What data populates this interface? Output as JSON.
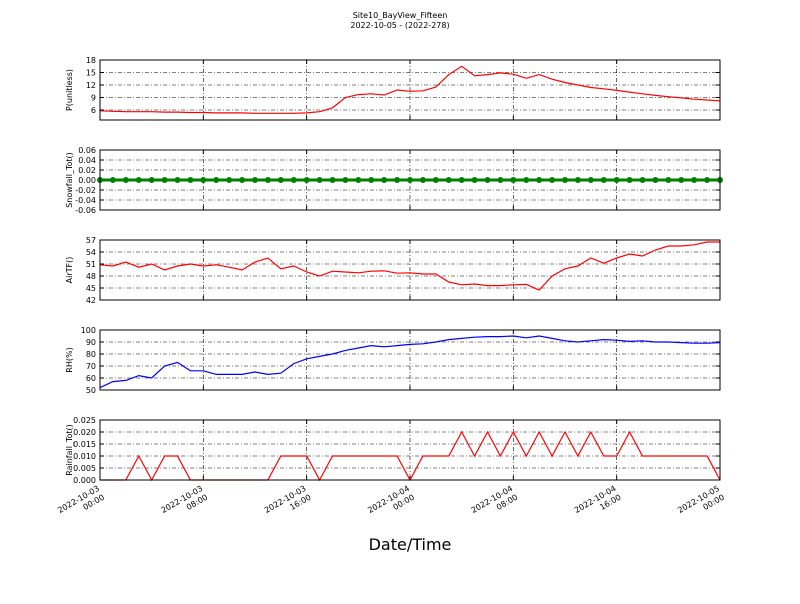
{
  "title": "Site10_BayView_Fifteen",
  "subtitle": "2022-10-05 - (2022-278)",
  "xlabel": "Date/Time",
  "chart_data": [
    {
      "type": "line",
      "ylabel": "P(unitless)",
      "color": "#ff0000",
      "grid": true,
      "ylim": [
        3.6,
        18
      ],
      "yticks": [
        6,
        9,
        12,
        15,
        18
      ],
      "xlim": [
        "2022-10-03 00:00",
        "2022-10-05 00:00"
      ],
      "xticks": [
        "2022-10-03 00:00",
        "2022-10-03 08:00",
        "2022-10-03 16:00",
        "2022-10-04 00:00",
        "2022-10-04 08:00",
        "2022-10-04 16:00",
        "2022-10-05 00:00"
      ],
      "x": [
        "2022-10-03 00:00",
        "2022-10-03 01:00",
        "2022-10-03 02:00",
        "2022-10-03 03:00",
        "2022-10-03 04:00",
        "2022-10-03 05:00",
        "2022-10-03 06:00",
        "2022-10-03 07:00",
        "2022-10-03 08:00",
        "2022-10-03 09:00",
        "2022-10-03 10:00",
        "2022-10-03 11:00",
        "2022-10-03 12:00",
        "2022-10-03 13:00",
        "2022-10-03 14:00",
        "2022-10-03 15:00",
        "2022-10-03 16:00",
        "2022-10-03 17:00",
        "2022-10-03 18:00",
        "2022-10-03 19:00",
        "2022-10-03 20:00",
        "2022-10-03 21:00",
        "2022-10-03 22:00",
        "2022-10-03 23:00",
        "2022-10-04 00:00",
        "2022-10-04 01:00",
        "2022-10-04 02:00",
        "2022-10-04 03:00",
        "2022-10-04 04:00",
        "2022-10-04 05:00",
        "2022-10-04 06:00",
        "2022-10-04 07:00",
        "2022-10-04 08:00",
        "2022-10-04 09:00",
        "2022-10-04 10:00",
        "2022-10-04 11:00",
        "2022-10-04 12:00",
        "2022-10-04 13:00",
        "2022-10-04 14:00",
        "2022-10-04 15:00",
        "2022-10-04 16:00",
        "2022-10-04 17:00",
        "2022-10-04 18:00",
        "2022-10-04 19:00",
        "2022-10-04 20:00",
        "2022-10-04 21:00",
        "2022-10-04 22:00",
        "2022-10-04 23:00",
        "2022-10-05 00:00"
      ],
      "values": [
        5.8,
        5.7,
        5.6,
        5.6,
        5.6,
        5.5,
        5.5,
        5.4,
        5.4,
        5.3,
        5.3,
        5.3,
        5.2,
        5.2,
        5.2,
        5.2,
        5.3,
        5.6,
        6.5,
        9,
        9.7,
        9.9,
        9.6,
        10.8,
        10.5,
        10.6,
        11.5,
        14.5,
        16.5,
        14.2,
        14.5,
        14.9,
        14.6,
        13.6,
        14.5,
        13.4,
        12.6,
        12,
        11.4,
        11.1,
        10.7,
        10.3,
        9.9,
        9.5,
        9.2,
        8.9,
        8.6,
        8.4,
        8.2
      ]
    },
    {
      "type": "dotline",
      "ylabel": "Snowfall_Tot()",
      "color": "#008000",
      "grid": true,
      "ylim": [
        -0.06,
        0.06
      ],
      "yticks": [
        -0.06,
        -0.04,
        -0.02,
        {
          "value": 0,
          "label": "0.00"
        },
        0.02,
        0.04,
        0.06
      ],
      "xlim": [
        "2022-10-03 00:00",
        "2022-10-05 00:00"
      ],
      "xticks": [
        "2022-10-03 00:00",
        "2022-10-03 08:00",
        "2022-10-03 16:00",
        "2022-10-04 00:00",
        "2022-10-04 08:00",
        "2022-10-04 16:00",
        "2022-10-05 00:00"
      ],
      "x": [
        "2022-10-03 00:00",
        "2022-10-03 01:00",
        "2022-10-03 02:00",
        "2022-10-03 03:00",
        "2022-10-03 04:00",
        "2022-10-03 05:00",
        "2022-10-03 06:00",
        "2022-10-03 07:00",
        "2022-10-03 08:00",
        "2022-10-03 09:00",
        "2022-10-03 10:00",
        "2022-10-03 11:00",
        "2022-10-03 12:00",
        "2022-10-03 13:00",
        "2022-10-03 14:00",
        "2022-10-03 15:00",
        "2022-10-03 16:00",
        "2022-10-03 17:00",
        "2022-10-03 18:00",
        "2022-10-03 19:00",
        "2022-10-03 20:00",
        "2022-10-03 21:00",
        "2022-10-03 22:00",
        "2022-10-03 23:00",
        "2022-10-04 00:00",
        "2022-10-04 01:00",
        "2022-10-04 02:00",
        "2022-10-04 03:00",
        "2022-10-04 04:00",
        "2022-10-04 05:00",
        "2022-10-04 06:00",
        "2022-10-04 07:00",
        "2022-10-04 08:00",
        "2022-10-04 09:00",
        "2022-10-04 10:00",
        "2022-10-04 11:00",
        "2022-10-04 12:00",
        "2022-10-04 13:00",
        "2022-10-04 14:00",
        "2022-10-04 15:00",
        "2022-10-04 16:00",
        "2022-10-04 17:00",
        "2022-10-04 18:00",
        "2022-10-04 19:00",
        "2022-10-04 20:00",
        "2022-10-04 21:00",
        "2022-10-04 22:00",
        "2022-10-04 23:00",
        "2022-10-05 00:00"
      ],
      "values": [
        0,
        0,
        0,
        0,
        0,
        0,
        0,
        0,
        0,
        0,
        0,
        0,
        0,
        0,
        0,
        0,
        0,
        0,
        0,
        0,
        0,
        0,
        0,
        0,
        0,
        0,
        0,
        0,
        0,
        0,
        0,
        0,
        0,
        0,
        0,
        0,
        0,
        0,
        0,
        0,
        0,
        0,
        0,
        0,
        0,
        0,
        0,
        0,
        0
      ]
    },
    {
      "type": "line",
      "ylabel": "AirTF()",
      "color": "#ff0000",
      "grid": true,
      "ylim": [
        42,
        57
      ],
      "yticks": [
        42,
        45,
        48,
        51,
        54,
        57
      ],
      "xlim": [
        "2022-10-03 00:00",
        "2022-10-05 00:00"
      ],
      "xticks": [
        "2022-10-03 00:00",
        "2022-10-03 08:00",
        "2022-10-03 16:00",
        "2022-10-04 00:00",
        "2022-10-04 08:00",
        "2022-10-04 16:00",
        "2022-10-05 00:00"
      ],
      "x": [
        "2022-10-03 00:00",
        "2022-10-03 01:00",
        "2022-10-03 02:00",
        "2022-10-03 03:00",
        "2022-10-03 04:00",
        "2022-10-03 05:00",
        "2022-10-03 06:00",
        "2022-10-03 07:00",
        "2022-10-03 08:00",
        "2022-10-03 09:00",
        "2022-10-03 10:00",
        "2022-10-03 11:00",
        "2022-10-03 12:00",
        "2022-10-03 13:00",
        "2022-10-03 14:00",
        "2022-10-03 15:00",
        "2022-10-03 16:00",
        "2022-10-03 17:00",
        "2022-10-03 18:00",
        "2022-10-03 19:00",
        "2022-10-03 20:00",
        "2022-10-03 21:00",
        "2022-10-03 22:00",
        "2022-10-03 23:00",
        "2022-10-04 00:00",
        "2022-10-04 01:00",
        "2022-10-04 02:00",
        "2022-10-04 03:00",
        "2022-10-04 04:00",
        "2022-10-04 05:00",
        "2022-10-04 06:00",
        "2022-10-04 07:00",
        "2022-10-04 08:00",
        "2022-10-04 09:00",
        "2022-10-04 10:00",
        "2022-10-04 11:00",
        "2022-10-04 12:00",
        "2022-10-04 13:00",
        "2022-10-04 14:00",
        "2022-10-04 15:00",
        "2022-10-04 16:00",
        "2022-10-04 17:00",
        "2022-10-04 18:00",
        "2022-10-04 19:00",
        "2022-10-04 20:00",
        "2022-10-04 21:00",
        "2022-10-04 22:00",
        "2022-10-04 23:00",
        "2022-10-05 00:00"
      ],
      "values": [
        50.8,
        50.5,
        51.5,
        50.2,
        51,
        49.5,
        50.5,
        51,
        50.5,
        50.8,
        50.2,
        49.5,
        51.5,
        52.5,
        49.8,
        50.5,
        49,
        48,
        49.2,
        49,
        48.8,
        49.2,
        49.3,
        48.7,
        48.8,
        48.5,
        48.5,
        46.5,
        45.8,
        46,
        45.6,
        45.6,
        45.8,
        45.9,
        44.5,
        48,
        49.8,
        50.5,
        52.5,
        51.2,
        52.5,
        53.5,
        53,
        54.5,
        55.5,
        55.5,
        55.8,
        56.5,
        56.5
      ]
    },
    {
      "type": "line",
      "ylabel": "RH(%)",
      "color": "#0000ff",
      "grid": true,
      "ylim": [
        50,
        100
      ],
      "yticks": [
        50,
        60,
        70,
        80,
        90,
        100
      ],
      "xlim": [
        "2022-10-03 00:00",
        "2022-10-05 00:00"
      ],
      "xticks": [
        "2022-10-03 00:00",
        "2022-10-03 08:00",
        "2022-10-03 16:00",
        "2022-10-04 00:00",
        "2022-10-04 08:00",
        "2022-10-04 16:00",
        "2022-10-05 00:00"
      ],
      "x": [
        "2022-10-03 00:00",
        "2022-10-03 01:00",
        "2022-10-03 02:00",
        "2022-10-03 03:00",
        "2022-10-03 04:00",
        "2022-10-03 05:00",
        "2022-10-03 06:00",
        "2022-10-03 07:00",
        "2022-10-03 08:00",
        "2022-10-03 09:00",
        "2022-10-03 10:00",
        "2022-10-03 11:00",
        "2022-10-03 12:00",
        "2022-10-03 13:00",
        "2022-10-03 14:00",
        "2022-10-03 15:00",
        "2022-10-03 16:00",
        "2022-10-03 17:00",
        "2022-10-03 18:00",
        "2022-10-03 19:00",
        "2022-10-03 20:00",
        "2022-10-03 21:00",
        "2022-10-03 22:00",
        "2022-10-03 23:00",
        "2022-10-04 00:00",
        "2022-10-04 01:00",
        "2022-10-04 02:00",
        "2022-10-04 03:00",
        "2022-10-04 04:00",
        "2022-10-04 05:00",
        "2022-10-04 06:00",
        "2022-10-04 07:00",
        "2022-10-04 08:00",
        "2022-10-04 09:00",
        "2022-10-04 10:00",
        "2022-10-04 11:00",
        "2022-10-04 12:00",
        "2022-10-04 13:00",
        "2022-10-04 14:00",
        "2022-10-04 15:00",
        "2022-10-04 16:00",
        "2022-10-04 17:00",
        "2022-10-04 18:00",
        "2022-10-04 19:00",
        "2022-10-04 20:00",
        "2022-10-04 21:00",
        "2022-10-04 22:00",
        "2022-10-04 23:00",
        "2022-10-05 00:00"
      ],
      "values": [
        52,
        57,
        58,
        62,
        60,
        70,
        73,
        66,
        66,
        63,
        63,
        63,
        65,
        63,
        64,
        72,
        76,
        78,
        80,
        83,
        85,
        87,
        86,
        87,
        88,
        88.5,
        90,
        92,
        93,
        94,
        94.5,
        94.5,
        95,
        93.5,
        95,
        93,
        91,
        90,
        91,
        92,
        91.5,
        90.5,
        91,
        90,
        90,
        89.5,
        89,
        89,
        89.5
      ]
    },
    {
      "type": "line",
      "ylabel": "Rainfall_Tot()",
      "color": "#ff0000",
      "grid": true,
      "show_xtick_labels": true,
      "ylim": [
        0,
        0.025
      ],
      "yticks": [
        {
          "value": 0,
          "label": "0.000"
        },
        {
          "value": 0.005,
          "label": "0.005"
        },
        {
          "value": 0.01,
          "label": "0.010"
        },
        {
          "value": 0.015,
          "label": "0.015"
        },
        {
          "value": 0.02,
          "label": "0.020"
        },
        {
          "value": 0.025,
          "label": "0.025"
        }
      ],
      "xlim": [
        "2022-10-03 00:00",
        "2022-10-05 00:00"
      ],
      "xticks": [
        "2022-10-03 00:00",
        "2022-10-03 08:00",
        "2022-10-03 16:00",
        "2022-10-04 00:00",
        "2022-10-04 08:00",
        "2022-10-04 16:00",
        "2022-10-05 00:00"
      ],
      "x": [
        "2022-10-03 00:00",
        "2022-10-03 01:00",
        "2022-10-03 02:00",
        "2022-10-03 03:00",
        "2022-10-03 04:00",
        "2022-10-03 05:00",
        "2022-10-03 06:00",
        "2022-10-03 07:00",
        "2022-10-03 08:00",
        "2022-10-03 09:00",
        "2022-10-03 10:00",
        "2022-10-03 11:00",
        "2022-10-03 12:00",
        "2022-10-03 13:00",
        "2022-10-03 14:00",
        "2022-10-03 15:00",
        "2022-10-03 16:00",
        "2022-10-03 17:00",
        "2022-10-03 18:00",
        "2022-10-03 19:00",
        "2022-10-03 20:00",
        "2022-10-03 21:00",
        "2022-10-03 22:00",
        "2022-10-03 23:00",
        "2022-10-04 00:00",
        "2022-10-04 01:00",
        "2022-10-04 02:00",
        "2022-10-04 03:00",
        "2022-10-04 04:00",
        "2022-10-04 05:00",
        "2022-10-04 06:00",
        "2022-10-04 07:00",
        "2022-10-04 08:00",
        "2022-10-04 09:00",
        "2022-10-04 10:00",
        "2022-10-04 11:00",
        "2022-10-04 12:00",
        "2022-10-04 13:00",
        "2022-10-04 14:00",
        "2022-10-04 15:00",
        "2022-10-04 16:00",
        "2022-10-04 17:00",
        "2022-10-04 18:00",
        "2022-10-04 19:00",
        "2022-10-04 20:00",
        "2022-10-04 21:00",
        "2022-10-04 22:00",
        "2022-10-04 23:00",
        "2022-10-05 00:00"
      ],
      "values": [
        0,
        0,
        0,
        0.01,
        0,
        0.01,
        0.01,
        0,
        0,
        0,
        0,
        0,
        0,
        0,
        0.01,
        0.01,
        0.01,
        0,
        0.01,
        0.01,
        0.01,
        0.01,
        0.01,
        0.01,
        0,
        0.01,
        0.01,
        0.01,
        0.02,
        0.01,
        0.02,
        0.01,
        0.02,
        0.01,
        0.02,
        0.01,
        0.02,
        0.01,
        0.02,
        0.01,
        0.01,
        0.02,
        0.01,
        0.01,
        0.01,
        0.01,
        0.01,
        0.01,
        0
      ]
    }
  ]
}
